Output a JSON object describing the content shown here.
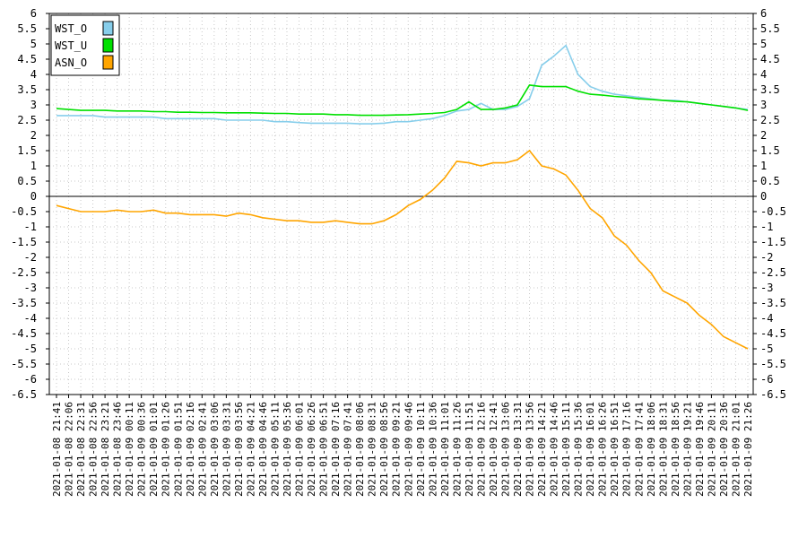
{
  "chart_data": {
    "type": "line",
    "title": "",
    "xlabel": "",
    "ylabel": "",
    "ylim": [
      -6.5,
      6
    ],
    "y_step": 0.5,
    "grid": true,
    "zero_line": true,
    "legend_position": "top-left",
    "x": [
      "2021-01-08 21:41",
      "2021-01-08 22:06",
      "2021-01-08 22:31",
      "2021-01-08 22:56",
      "2021-01-08 23:21",
      "2021-01-08 23:46",
      "2021-01-09 00:11",
      "2021-01-09 00:36",
      "2021-01-09 01:01",
      "2021-01-09 01:26",
      "2021-01-09 01:51",
      "2021-01-09 02:16",
      "2021-01-09 02:41",
      "2021-01-09 03:06",
      "2021-01-09 03:31",
      "2021-01-09 03:56",
      "2021-01-09 04:21",
      "2021-01-09 04:46",
      "2021-01-09 05:11",
      "2021-01-09 05:36",
      "2021-01-09 06:01",
      "2021-01-09 06:26",
      "2021-01-09 06:51",
      "2021-01-09 07:16",
      "2021-01-09 07:41",
      "2021-01-09 08:06",
      "2021-01-09 08:31",
      "2021-01-09 08:56",
      "2021-01-09 09:21",
      "2021-01-09 09:46",
      "2021-01-09 10:11",
      "2021-01-09 10:36",
      "2021-01-09 11:01",
      "2021-01-09 11:26",
      "2021-01-09 11:51",
      "2021-01-09 12:16",
      "2021-01-09 12:41",
      "2021-01-09 13:06",
      "2021-01-09 13:31",
      "2021-01-09 13:56",
      "2021-01-09 14:21",
      "2021-01-09 14:46",
      "2021-01-09 15:11",
      "2021-01-09 15:36",
      "2021-01-09 16:01",
      "2021-01-09 16:26",
      "2021-01-09 16:51",
      "2021-01-09 17:16",
      "2021-01-09 17:41",
      "2021-01-09 18:06",
      "2021-01-09 18:31",
      "2021-01-09 18:56",
      "2021-01-09 19:21",
      "2021-01-09 19:46",
      "2021-01-09 20:11",
      "2021-01-09 20:36",
      "2021-01-09 21:01",
      "2021-01-09 21:26"
    ],
    "series": [
      {
        "name": "WST_O",
        "color": "#87ceeb",
        "values": [
          2.65,
          2.65,
          2.65,
          2.65,
          2.6,
          2.6,
          2.6,
          2.6,
          2.6,
          2.55,
          2.55,
          2.55,
          2.55,
          2.55,
          2.5,
          2.5,
          2.5,
          2.5,
          2.45,
          2.45,
          2.42,
          2.4,
          2.4,
          2.4,
          2.4,
          2.38,
          2.38,
          2.4,
          2.45,
          2.45,
          2.5,
          2.55,
          2.65,
          2.8,
          2.85,
          3.05,
          2.85,
          2.85,
          2.95,
          3.2,
          4.3,
          4.6,
          4.95,
          4.0,
          3.6,
          3.45,
          3.35,
          3.3,
          3.25,
          3.2,
          3.15,
          3.15,
          3.1,
          3.05,
          3.0,
          2.95,
          2.9,
          2.85
        ]
      },
      {
        "name": "WST_U",
        "color": "#00e000",
        "values": [
          2.88,
          2.85,
          2.82,
          2.82,
          2.82,
          2.8,
          2.8,
          2.8,
          2.78,
          2.78,
          2.76,
          2.76,
          2.75,
          2.75,
          2.74,
          2.74,
          2.74,
          2.73,
          2.72,
          2.72,
          2.7,
          2.7,
          2.7,
          2.68,
          2.68,
          2.66,
          2.66,
          2.66,
          2.67,
          2.68,
          2.7,
          2.72,
          2.75,
          2.85,
          3.1,
          2.85,
          2.85,
          2.9,
          3.0,
          3.65,
          3.6,
          3.6,
          3.6,
          3.45,
          3.35,
          3.32,
          3.28,
          3.25,
          3.2,
          3.18,
          3.15,
          3.12,
          3.1,
          3.05,
          3.0,
          2.95,
          2.9,
          2.82
        ]
      },
      {
        "name": "ASN_O",
        "color": "#ffa500",
        "values": [
          -0.3,
          -0.4,
          -0.5,
          -0.5,
          -0.5,
          -0.45,
          -0.5,
          -0.5,
          -0.45,
          -0.55,
          -0.55,
          -0.6,
          -0.6,
          -0.6,
          -0.65,
          -0.55,
          -0.6,
          -0.7,
          -0.75,
          -0.8,
          -0.8,
          -0.85,
          -0.85,
          -0.8,
          -0.85,
          -0.9,
          -0.9,
          -0.8,
          -0.6,
          -0.3,
          -0.1,
          0.2,
          0.6,
          1.15,
          1.1,
          1.0,
          1.1,
          1.1,
          1.2,
          1.5,
          1.0,
          0.9,
          0.7,
          0.2,
          -0.4,
          -0.7,
          -1.3,
          -1.6,
          -2.1,
          -2.5,
          -3.1,
          -3.3,
          -3.5,
          -3.9,
          -4.2,
          -4.6,
          -4.8,
          -5.0
        ]
      }
    ]
  }
}
